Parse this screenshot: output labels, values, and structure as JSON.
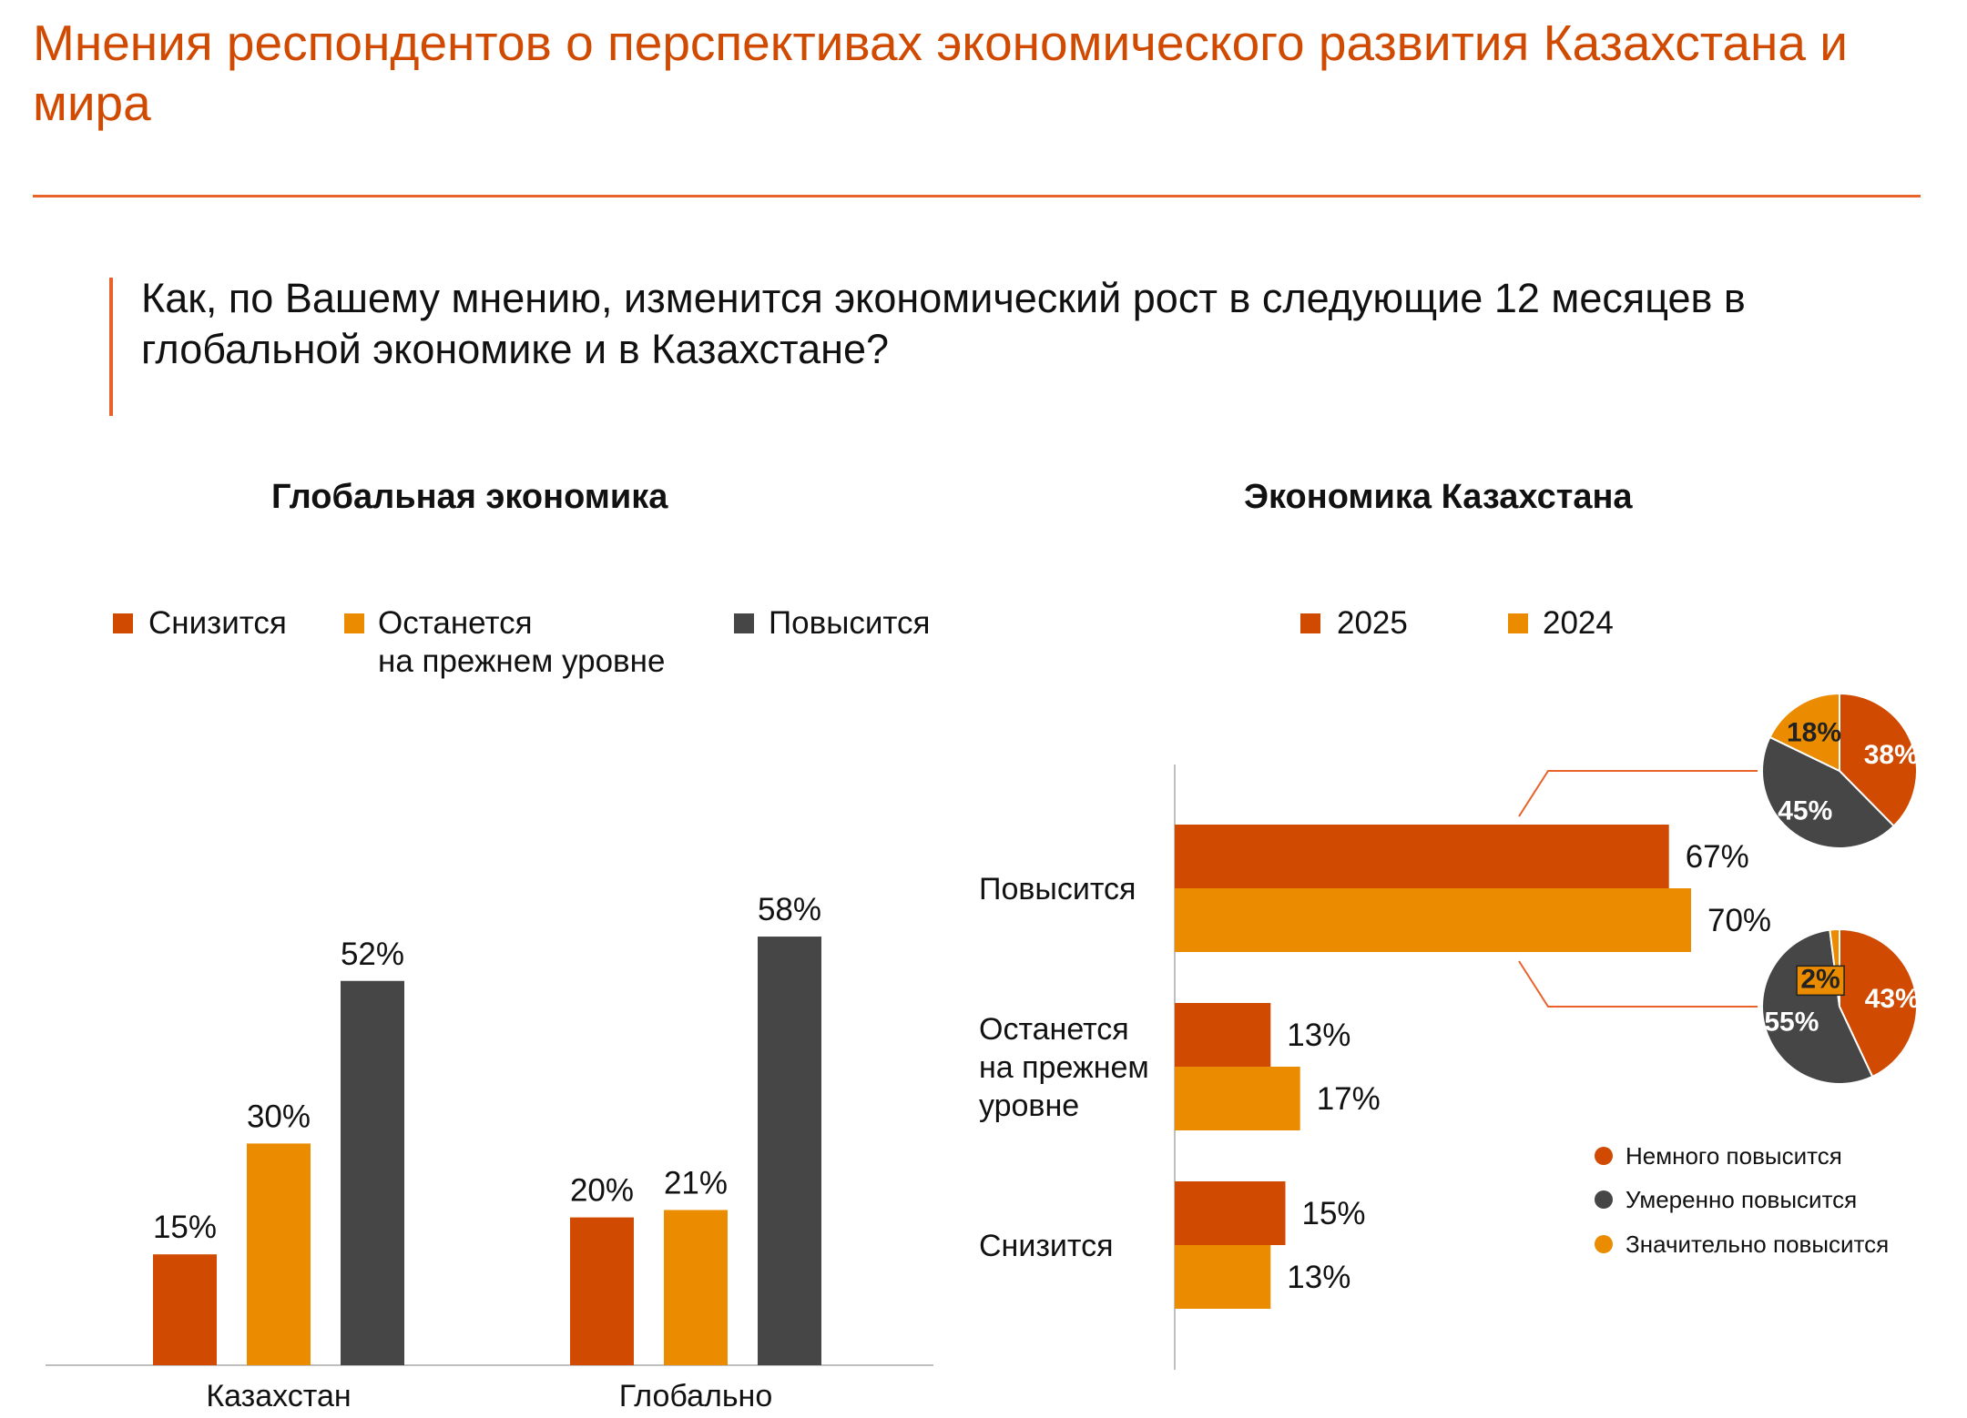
{
  "title": "Мнения респондентов о перспективах экономического развития Казахстана и мира",
  "question": "Как, по Вашему мнению, изменится экономический рост в следующие 12 месяцев в глобальной экономике и в Казахстане?",
  "colors": {
    "dark_orange": "#d04a02",
    "orange": "#eb8c00",
    "dark_gray": "#464646",
    "accent_line": "#e8622a"
  },
  "chart_data": [
    {
      "type": "bar",
      "title": "Глобальная экономика",
      "categories": [
        "Казахстан",
        "Глобально"
      ],
      "series": [
        {
          "name": "Снизится",
          "values": [
            15,
            20
          ],
          "color": "#d04a02"
        },
        {
          "name": "Останется на прежнем уровне",
          "values": [
            30,
            21
          ],
          "color": "#eb8c00"
        },
        {
          "name": "Повысится",
          "values": [
            52,
            58
          ],
          "color": "#464646"
        }
      ],
      "legend": {
        "line1": [
          "Снизится",
          "Останется",
          "Повысится"
        ],
        "line2": "на прежнем уровне"
      },
      "value_suffix": "%",
      "ylim": [
        0,
        60
      ],
      "grid": false,
      "legend_position": "top"
    },
    {
      "type": "bar",
      "orientation": "horizontal",
      "title": "Экономика Казахстана",
      "categories": [
        "Повысится",
        "Останется на прежнем уровне",
        "Снизится"
      ],
      "series": [
        {
          "name": "2025",
          "values": [
            67,
            13,
            15
          ],
          "color": "#d04a02"
        },
        {
          "name": "2024",
          "values": [
            70,
            17,
            13
          ],
          "color": "#eb8c00"
        }
      ],
      "value_suffix": "%",
      "xlim": [
        0,
        100
      ],
      "grid": false,
      "legend_position": "top"
    },
    {
      "type": "pie",
      "year": "2025",
      "slices": [
        {
          "label": "Немного повысится",
          "value": 38,
          "color": "#d04a02"
        },
        {
          "label": "Умеренно повысится",
          "value": 45,
          "color": "#464646"
        },
        {
          "label": "Значительно повысится",
          "value": 18,
          "color": "#eb8c00"
        }
      ]
    },
    {
      "type": "pie",
      "year": "2024",
      "slices": [
        {
          "label": "Немного повысится",
          "value": 43,
          "color": "#d04a02"
        },
        {
          "label": "Умеренно повысится",
          "value": 55,
          "color": "#464646"
        },
        {
          "label": "Значительно повысится",
          "value": 2,
          "color": "#eb8c00"
        }
      ]
    }
  ],
  "pie_legend": [
    {
      "label": "Немного повысится",
      "color": "#d04a02"
    },
    {
      "label": "Умеренно повысится",
      "color": "#464646"
    },
    {
      "label": "Значительно повысится",
      "color": "#eb8c00"
    }
  ]
}
